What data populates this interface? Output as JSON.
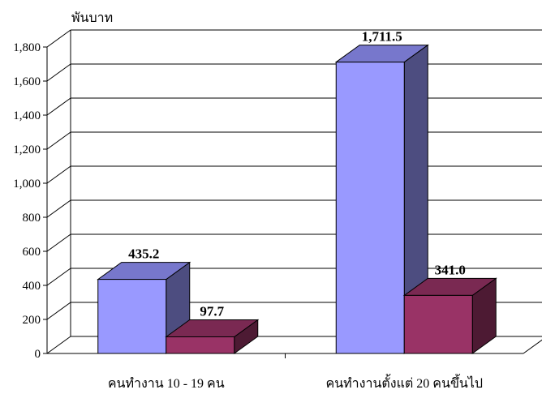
{
  "chart_data": {
    "type": "bar",
    "unit": "พันบาท",
    "categories": [
      "คนทำงาน 10 - 19 คน",
      "คนทำงานตั้งแต่ 20 คนขึ้นไป"
    ],
    "series": [
      {
        "values": [
          435.2,
          1711.5
        ],
        "value_labels": [
          "435.2",
          "1,711.5"
        ],
        "color": "#9999ff",
        "side_color": "#4d4d80",
        "top_color": "#7777cc"
      },
      {
        "values": [
          97.7,
          341.0
        ],
        "value_labels": [
          "97.7",
          "341.0"
        ],
        "color": "#993366",
        "side_color": "#4d1a33",
        "top_color": "#7a2952"
      }
    ],
    "ylim": [
      0,
      1800
    ],
    "yticks": [
      0,
      200,
      400,
      600,
      800,
      1000,
      1200,
      1400,
      1600,
      1800
    ],
    "ytick_labels": [
      "0",
      "200",
      "400",
      "600",
      "800",
      "1,000",
      "1,200",
      "1,400",
      "1,600",
      "1,800"
    ],
    "grid": true,
    "legend": "none",
    "style": "3d"
  }
}
